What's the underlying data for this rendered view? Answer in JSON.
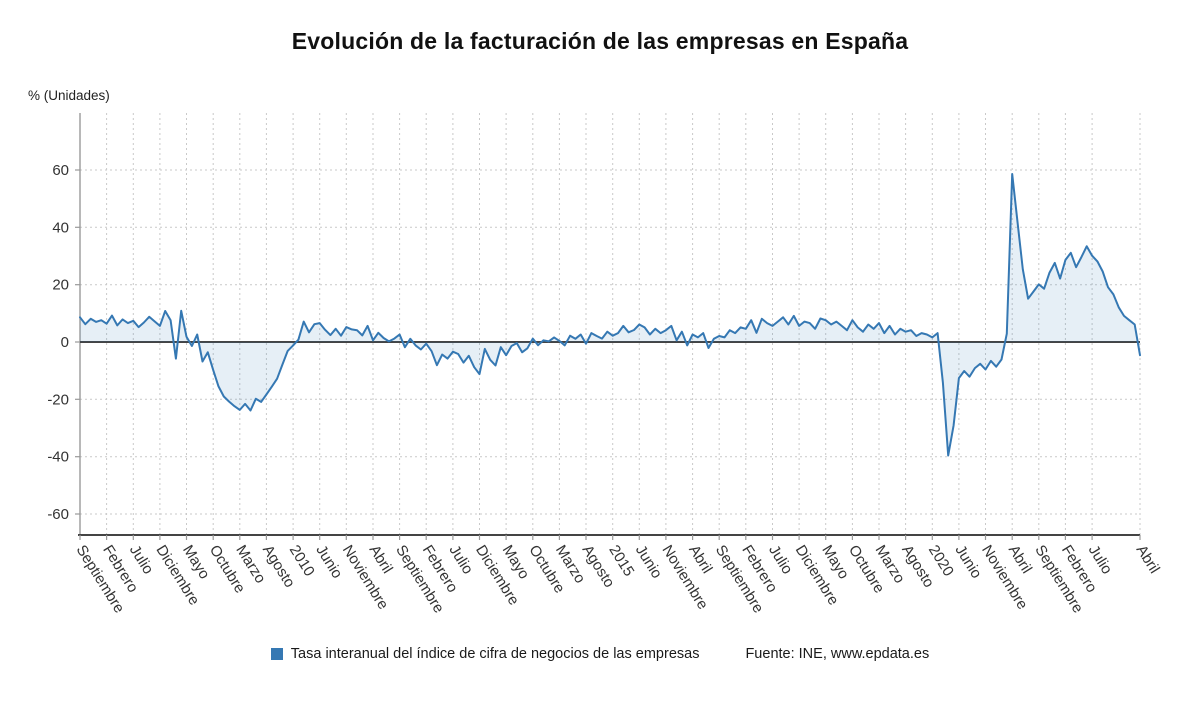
{
  "title": "Evolución de la facturación de las empresas en España",
  "y_axis_unit": "% (Unidades)",
  "legend": {
    "series_label": "Tasa interanual del índice de cifra de negocios de las empresas",
    "source": "Fuente: INE, www.epdata.es"
  },
  "colors": {
    "line": "#3578b3",
    "area_fill": "rgba(53,120,179,0.12)",
    "grid": "#c9c9c9",
    "axis": "#444444",
    "axis_light": "#999999",
    "tick_text": "#333333"
  },
  "chart_data": {
    "type": "line",
    "title": "Evolución de la facturación de las empresas en España",
    "xlabel": "",
    "ylabel": "% (Unidades)",
    "ylim": [
      -60,
      60
    ],
    "y_ticks": [
      60,
      40,
      20,
      0,
      -20,
      -40,
      -60
    ],
    "grid": true,
    "legend_position": "bottom",
    "x_start": "Septiembre 2006",
    "x_end": "Abril 2023",
    "x_ticks": [
      {
        "p": 0,
        "l": "Septiembre"
      },
      {
        "p": 5,
        "l": "Febrero"
      },
      {
        "p": 10,
        "l": "Julio"
      },
      {
        "p": 15,
        "l": "Diciembre"
      },
      {
        "p": 20,
        "l": "Mayo"
      },
      {
        "p": 25,
        "l": "Octubre"
      },
      {
        "p": 30,
        "l": "Marzo"
      },
      {
        "p": 35,
        "l": "Agosto"
      },
      {
        "p": 40,
        "l": "2010"
      },
      {
        "p": 45,
        "l": "Junio"
      },
      {
        "p": 50,
        "l": "Noviembre"
      },
      {
        "p": 55,
        "l": "Abril"
      },
      {
        "p": 60,
        "l": "Septiembre"
      },
      {
        "p": 65,
        "l": "Febrero"
      },
      {
        "p": 70,
        "l": "Julio"
      },
      {
        "p": 75,
        "l": "Diciembre"
      },
      {
        "p": 80,
        "l": "Mayo"
      },
      {
        "p": 85,
        "l": "Octubre"
      },
      {
        "p": 90,
        "l": "Marzo"
      },
      {
        "p": 95,
        "l": "Agosto"
      },
      {
        "p": 100,
        "l": "2015"
      },
      {
        "p": 105,
        "l": "Junio"
      },
      {
        "p": 110,
        "l": "Noviembre"
      },
      {
        "p": 115,
        "l": "Abril"
      },
      {
        "p": 120,
        "l": "Septiembre"
      },
      {
        "p": 125,
        "l": "Febrero"
      },
      {
        "p": 130,
        "l": "Julio"
      },
      {
        "p": 135,
        "l": "Diciembre"
      },
      {
        "p": 140,
        "l": "Mayo"
      },
      {
        "p": 145,
        "l": "Octubre"
      },
      {
        "p": 150,
        "l": "Marzo"
      },
      {
        "p": 155,
        "l": "Agosto"
      },
      {
        "p": 160,
        "l": "2020"
      },
      {
        "p": 165,
        "l": "Junio"
      },
      {
        "p": 170,
        "l": "Noviembre"
      },
      {
        "p": 175,
        "l": "Abril"
      },
      {
        "p": 180,
        "l": "Septiembre"
      },
      {
        "p": 185,
        "l": "Febrero"
      },
      {
        "p": 190,
        "l": "Julio"
      },
      {
        "p": 199,
        "l": "Abril"
      }
    ],
    "series": [
      {
        "name": "Tasa interanual del índice de cifra de negocios de las empresas",
        "values": [
          8.6,
          6.2,
          8.1,
          7.0,
          7.6,
          6.4,
          9.2,
          5.8,
          7.9,
          6.6,
          7.4,
          5.2,
          6.8,
          8.8,
          7.2,
          5.6,
          10.8,
          7.6,
          -5.8,
          10.9,
          1.8,
          -1.4,
          2.6,
          -6.8,
          -3.6,
          -9.8,
          -15.5,
          -19.0,
          -20.8,
          -22.4,
          -23.7,
          -21.6,
          -23.9,
          -19.8,
          -20.9,
          -18.3,
          -15.6,
          -12.8,
          -7.9,
          -3.1,
          -1.2,
          0.8,
          7.1,
          3.4,
          6.2,
          6.6,
          4.3,
          2.4,
          4.6,
          2.2,
          5.2,
          4.4,
          4.1,
          2.3,
          5.6,
          0.6,
          3.2,
          1.4,
          0.2,
          1.2,
          2.6,
          -1.8,
          1.1,
          -1.2,
          -2.6,
          -0.6,
          -3.2,
          -8.1,
          -4.4,
          -5.8,
          -3.4,
          -4.2,
          -7.2,
          -4.8,
          -8.8,
          -11.2,
          -2.4,
          -6.2,
          -8.2,
          -1.8,
          -4.6,
          -1.4,
          -0.4,
          -3.6,
          -2.2,
          1.2,
          -1.1,
          0.6,
          0.2,
          1.6,
          0.4,
          -1.2,
          2.2,
          1.1,
          2.6,
          -0.6,
          3.1,
          2.1,
          1.2,
          3.6,
          2.2,
          3.1,
          5.6,
          3.4,
          4.2,
          6.1,
          5.1,
          2.6,
          4.6,
          3.1,
          4.1,
          5.6,
          0.6,
          3.6,
          -1.2,
          2.6,
          1.6,
          3.1,
          -2.1,
          1.1,
          2.1,
          1.6,
          4.1,
          3.1,
          5.1,
          4.6,
          7.6,
          3.2,
          8.1,
          6.6,
          5.6,
          7.1,
          8.6,
          6.1,
          9.1,
          5.6,
          7.1,
          6.6,
          4.6,
          8.2,
          7.6,
          6.1,
          7.1,
          5.6,
          4.1,
          7.6,
          5.1,
          3.6,
          6.1,
          4.6,
          6.6,
          3.1,
          5.6,
          2.6,
          4.6,
          3.6,
          4.1,
          2.1,
          3.1,
          2.6,
          1.6,
          3.1,
          -14.2,
          -39.6,
          -29.1,
          -12.6,
          -10.1,
          -12.1,
          -9.1,
          -7.6,
          -9.6,
          -6.6,
          -8.6,
          -6.1,
          2.9,
          58.6,
          41.9,
          25.4,
          15.1,
          17.6,
          20.1,
          18.6,
          24.1,
          27.6,
          22.1,
          28.6,
          31.1,
          26.1,
          29.6,
          33.4,
          30.1,
          28.1,
          24.6,
          19.1,
          16.6,
          12.1,
          9.1,
          7.6,
          6.1,
          -4.6
        ]
      }
    ]
  }
}
